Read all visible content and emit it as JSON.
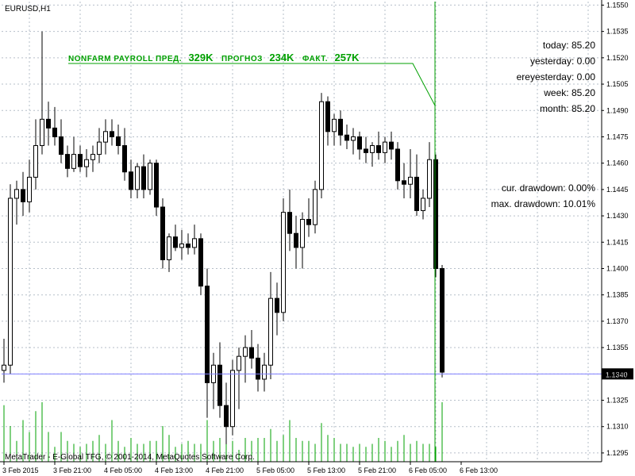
{
  "chart_data": {
    "type": "candlestick",
    "symbol_label": "EURUSD,H1",
    "ylim": [
      1.129,
      1.1552
    ],
    "y_ticks": [
      "1.1550",
      "1.1535",
      "1.1520",
      "1.1505",
      "1.1490",
      "1.1475",
      "1.1460",
      "1.1445",
      "1.1430",
      "1.1415",
      "1.1400",
      "1.1385",
      "1.1370",
      "1.1355",
      "1.1340",
      "1.1325",
      "1.1310",
      "1.1295"
    ],
    "y_tick_values": [
      1.155,
      1.1535,
      1.152,
      1.1505,
      1.149,
      1.1475,
      1.146,
      1.1445,
      1.143,
      1.1415,
      1.14,
      1.1385,
      1.137,
      1.1355,
      1.134,
      1.1325,
      1.131,
      1.1295
    ],
    "current_price_label": "1.1340",
    "current_price": 1.134,
    "x_labels": [
      "3 Feb 2015",
      "3 Feb 21:00",
      "4 Feb 05:00",
      "4 Feb 13:00",
      "4 Feb 21:00",
      "5 Feb 05:00",
      "5 Feb 13:00",
      "5 Feb 21:00",
      "6 Feb 05:00",
      "6 Feb 13:00"
    ],
    "x_label_bars": [
      0,
      8,
      16,
      24,
      32,
      40,
      48,
      56,
      64,
      72
    ],
    "grid": true,
    "candles": [
      [
        1.1342,
        1.136,
        1.1335,
        1.1345
      ],
      [
        1.1345,
        1.1448,
        1.134,
        1.144
      ],
      [
        1.144,
        1.145,
        1.1425,
        1.1445
      ],
      [
        1.1445,
        1.1455,
        1.143,
        1.1438
      ],
      [
        1.1438,
        1.1462,
        1.1432,
        1.1452
      ],
      [
        1.1452,
        1.1485,
        1.1445,
        1.147
      ],
      [
        1.147,
        1.1535,
        1.1465,
        1.1485
      ],
      [
        1.1485,
        1.1495,
        1.147,
        1.148
      ],
      [
        1.148,
        1.1492,
        1.147,
        1.1475
      ],
      [
        1.1475,
        1.1485,
        1.146,
        1.1465
      ],
      [
        1.1465,
        1.147,
        1.1452,
        1.1457
      ],
      [
        1.1457,
        1.1475,
        1.1455,
        1.1465
      ],
      [
        1.1465,
        1.147,
        1.1455,
        1.1458
      ],
      [
        1.1458,
        1.1468,
        1.1452,
        1.1462
      ],
      [
        1.1462,
        1.147,
        1.1455,
        1.1465
      ],
      [
        1.1465,
        1.148,
        1.146,
        1.1472
      ],
      [
        1.1472,
        1.1485,
        1.1465,
        1.1478
      ],
      [
        1.1478,
        1.1485,
        1.147,
        1.1475
      ],
      [
        1.1475,
        1.1482,
        1.1465,
        1.147
      ],
      [
        1.147,
        1.148,
        1.145,
        1.1455
      ],
      [
        1.1455,
        1.1462,
        1.144,
        1.1445
      ],
      [
        1.1445,
        1.146,
        1.144,
        1.1458
      ],
      [
        1.1458,
        1.1465,
        1.144,
        1.1445
      ],
      [
        1.1445,
        1.1462,
        1.1442,
        1.146
      ],
      [
        1.146,
        1.1462,
        1.143,
        1.1435
      ],
      [
        1.1435,
        1.144,
        1.14,
        1.1405
      ],
      [
        1.1405,
        1.142,
        1.1398,
        1.1418
      ],
      [
        1.1418,
        1.1425,
        1.141,
        1.1412
      ],
      [
        1.1412,
        1.1422,
        1.1405,
        1.1414
      ],
      [
        1.1414,
        1.142,
        1.1408,
        1.1412
      ],
      [
        1.1412,
        1.1425,
        1.1408,
        1.1417
      ],
      [
        1.1417,
        1.142,
        1.1385,
        1.139
      ],
      [
        1.139,
        1.14,
        1.1315,
        1.1335
      ],
      [
        1.1335,
        1.1352,
        1.132,
        1.1345
      ],
      [
        1.1345,
        1.1358,
        1.1315,
        1.1322
      ],
      [
        1.1322,
        1.1335,
        1.13,
        1.131
      ],
      [
        1.131,
        1.1348,
        1.1305,
        1.1342
      ],
      [
        1.1342,
        1.1355,
        1.132,
        1.135
      ],
      [
        1.135,
        1.1362,
        1.1335,
        1.1355
      ],
      [
        1.1355,
        1.1365,
        1.1343,
        1.1349
      ],
      [
        1.1349,
        1.1357,
        1.133,
        1.1337
      ],
      [
        1.1337,
        1.1352,
        1.133,
        1.1345
      ],
      [
        1.1345,
        1.1398,
        1.1337,
        1.1383
      ],
      [
        1.1383,
        1.1392,
        1.1362,
        1.1375
      ],
      [
        1.1375,
        1.144,
        1.137,
        1.1432
      ],
      [
        1.1432,
        1.1445,
        1.141,
        1.142
      ],
      [
        1.142,
        1.143,
        1.14,
        1.1412
      ],
      [
        1.1412,
        1.1432,
        1.14,
        1.1428
      ],
      [
        1.1428,
        1.144,
        1.1418,
        1.1425
      ],
      [
        1.1425,
        1.145,
        1.142,
        1.1445
      ],
      [
        1.1445,
        1.15,
        1.144,
        1.1495
      ],
      [
        1.1495,
        1.1498,
        1.147,
        1.1478
      ],
      [
        1.1478,
        1.1488,
        1.147,
        1.1485
      ],
      [
        1.1485,
        1.149,
        1.147,
        1.1476
      ],
      [
        1.1476,
        1.1482,
        1.1468,
        1.1473
      ],
      [
        1.1473,
        1.148,
        1.1465,
        1.1475
      ],
      [
        1.1475,
        1.1478,
        1.1462,
        1.1468
      ],
      [
        1.1468,
        1.1475,
        1.146,
        1.1466
      ],
      [
        1.1466,
        1.1472,
        1.1458,
        1.147
      ],
      [
        1.147,
        1.1478,
        1.1462,
        1.1466
      ],
      [
        1.1466,
        1.1475,
        1.146,
        1.1472
      ],
      [
        1.1472,
        1.1478,
        1.1462,
        1.1468
      ],
      [
        1.1468,
        1.1472,
        1.1445,
        1.145
      ],
      [
        1.145,
        1.146,
        1.144,
        1.1448
      ],
      [
        1.1448,
        1.1468,
        1.144,
        1.1452
      ],
      [
        1.1452,
        1.1465,
        1.143,
        1.1433
      ],
      [
        1.1433,
        1.1445,
        1.1428,
        1.144
      ],
      [
        1.144,
        1.1472,
        1.1435,
        1.1462
      ],
      [
        1.1462,
        1.1465,
        1.1395,
        1.14
      ],
      [
        1.14,
        1.1402,
        1.1338,
        1.1341
      ]
    ],
    "volumes": [
      0.95,
      0.6,
      0.35,
      0.7,
      0.5,
      0.85,
      1.0,
      0.5,
      0.25,
      0.5,
      0.35,
      0.3,
      0.25,
      0.3,
      0.35,
      0.45,
      0.3,
      0.7,
      0.35,
      0.25,
      0.4,
      0.3,
      0.3,
      0.35,
      0.35,
      0.6,
      0.45,
      0.25,
      0.3,
      0.35,
      0.3,
      0.3,
      0.7,
      0.35,
      0.4,
      0.55,
      0.35,
      0.2,
      0.4,
      0.35,
      0.4,
      0.4,
      0.55,
      0.35,
      0.45,
      0.7,
      0.4,
      0.35,
      0.35,
      0.3,
      0.65,
      0.45,
      0.4,
      0.3,
      0.3,
      0.25,
      0.3,
      0.25,
      0.3,
      0.4,
      0.35,
      0.25,
      0.35,
      0.45,
      0.3,
      0.35,
      0.3,
      0.3,
      0.25,
      1.0
    ]
  },
  "news": {
    "event": "NONFARM PAYROLL ПРЕД.",
    "prev_value": "329K",
    "forecast_label": "ПРОГНОЗ",
    "forecast_value": "234K",
    "actual_label": "ФАКТ.",
    "actual_value": "257K"
  },
  "stats": [
    {
      "label": "today:",
      "value": "85.20"
    },
    {
      "label": "yesterday:",
      "value": "0.00"
    },
    {
      "label": "ereyesterday:",
      "value": "0.00"
    },
    {
      "label": "week:",
      "value": "85.20"
    },
    {
      "label": "month:",
      "value": "85.20"
    }
  ],
  "drawdown": [
    {
      "label": "cur. drawdown:",
      "value": "0.00%"
    },
    {
      "label": "max. drawdown:",
      "value": "10.01%"
    }
  ],
  "copyright": "MetaTrader - E-Global TFG, © 2001-2014, MetaQuotes Software Corp.",
  "colors": {
    "grid": "#b6bfc9",
    "price_line": "#8080ff",
    "news": "#00a000",
    "volume": "#00a000",
    "candle": "#000000"
  }
}
